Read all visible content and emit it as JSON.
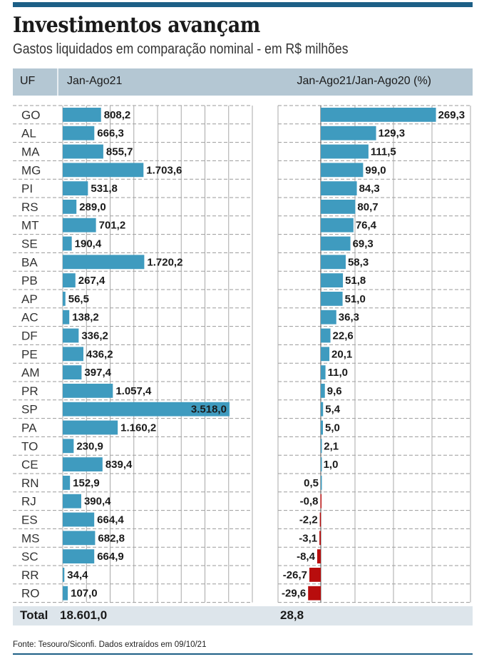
{
  "header": {
    "title": "Investimentos avançam",
    "subtitle": "Gastos liquidados em comparação nominal - em R$ milhões"
  },
  "table_header": {
    "uf": "UF",
    "left": "Jan-Ago21",
    "right": "Jan-Ago21/Jan-Ago20  (%)"
  },
  "total": {
    "label": "Total",
    "left_value": "18.601,0",
    "right_value": "28,8"
  },
  "footnote": "Fonte: Tesouro/Siconfi. Dados extraídos em 09/10/21",
  "colors": {
    "positive_bar": "#3f9bbf",
    "negative_bar": "#b80d0d",
    "accent_bar": "#1d5f86",
    "header_bg": "#b4c7d3",
    "total_bg": "#dde5eb"
  },
  "chart_data": [
    {
      "type": "bar",
      "orientation": "horizontal",
      "title": "Jan-Ago21",
      "xlabel": "R$ milhões",
      "xlim": [
        0,
        4000
      ],
      "grid": true,
      "categories": [
        "GO",
        "AL",
        "MA",
        "MG",
        "PI",
        "RS",
        "MT",
        "SE",
        "BA",
        "PB",
        "AP",
        "AC",
        "DF",
        "PE",
        "AM",
        "PR",
        "SP",
        "PA",
        "TO",
        "CE",
        "RN",
        "RJ",
        "ES",
        "MS",
        "SC",
        "RR",
        "RO"
      ],
      "values": [
        808.2,
        666.3,
        855.7,
        1703.6,
        531.8,
        289.0,
        701.2,
        190.4,
        1720.2,
        267.4,
        56.5,
        138.2,
        336.2,
        436.2,
        397.4,
        1057.4,
        3518.0,
        1160.2,
        230.9,
        839.4,
        152.9,
        390.4,
        664.4,
        682.8,
        664.9,
        34.4,
        107.0
      ],
      "labels": [
        "808,2",
        "666,3",
        "855,7",
        "1.703,6",
        "531,8",
        "289,0",
        "701,2",
        "190,4",
        "1.720,2",
        "267,4",
        "56,5",
        "138,2",
        "336,2",
        "436,2",
        "397,4",
        "1.057,4",
        "3.518,0",
        "1.160,2",
        "230,9",
        "839,4",
        "152,9",
        "390,4",
        "664,4",
        "682,8",
        "664,9",
        "34,4",
        "107,0"
      ]
    },
    {
      "type": "bar",
      "orientation": "horizontal",
      "title": "Jan-Ago21/Jan-Ago20 (%)",
      "xlabel": "%",
      "xlim": [
        -100,
        350
      ],
      "grid": true,
      "categories": [
        "GO",
        "AL",
        "MA",
        "MG",
        "PI",
        "RS",
        "MT",
        "SE",
        "BA",
        "PB",
        "AP",
        "AC",
        "DF",
        "PE",
        "AM",
        "PR",
        "SP",
        "PA",
        "TO",
        "CE",
        "RN",
        "RJ",
        "ES",
        "MS",
        "SC",
        "RR",
        "RO"
      ],
      "values": [
        269.3,
        129.3,
        111.5,
        99.0,
        84.3,
        80.7,
        76.4,
        69.3,
        58.3,
        51.8,
        51.0,
        36.3,
        22.6,
        20.1,
        11.0,
        9.6,
        5.4,
        5.0,
        2.1,
        1.0,
        0.5,
        -0.8,
        -2.2,
        -3.1,
        -8.4,
        -26.7,
        -29.6
      ],
      "labels": [
        "269,3",
        "129,3",
        "111,5",
        "99,0",
        "84,3",
        "80,7",
        "76,4",
        "69,3",
        "58,3",
        "51,8",
        "51,0",
        "36,3",
        "22,6",
        "20,1",
        "11,0",
        "9,6",
        "5,4",
        "5,0",
        "2,1",
        "1,0",
        "0,5",
        "-0,8",
        "-2,2",
        "-3,1",
        "-8,4",
        "-26,7",
        "-29,6"
      ]
    }
  ]
}
